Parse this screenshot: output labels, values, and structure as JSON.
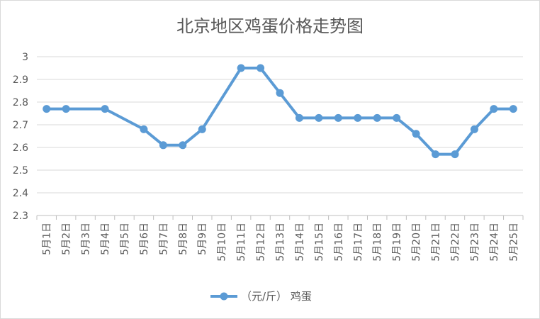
{
  "chart_data": {
    "type": "line",
    "title": "北京地区鸡蛋价格走势图",
    "categories": [
      "5月1日",
      "5月2日",
      "5月3日",
      "5月4日",
      "5月5日",
      "5月6日",
      "5月7日",
      "5月8日",
      "5月9日",
      "5月10日",
      "5月11日",
      "5月12日",
      "5月13日",
      "5月14日",
      "5月15日",
      "5月16日",
      "5月17日",
      "5月18日",
      "5月19日",
      "5月20日",
      "5月21日",
      "5月22日",
      "5月23日",
      "5月24日",
      "5月25日"
    ],
    "series": [
      {
        "name": "（元/斤） 鸡蛋",
        "color": "#5b9bd5",
        "x": [
          "5月1日",
          "5月2日",
          "5月4日",
          "5月6日",
          "5月7日",
          "5月8日",
          "5月9日",
          "5月11日",
          "5月12日",
          "5月13日",
          "5月14日",
          "5月15日",
          "5月16日",
          "5月17日",
          "5月18日",
          "5月19日",
          "5月20日",
          "5月21日",
          "5月22日",
          "5月23日",
          "5月24日",
          "5月25日"
        ],
        "values": [
          2.77,
          2.77,
          2.77,
          2.68,
          2.61,
          2.61,
          2.68,
          2.95,
          2.95,
          2.84,
          2.73,
          2.73,
          2.73,
          2.73,
          2.73,
          2.73,
          2.66,
          2.57,
          2.57,
          2.68,
          2.77,
          2.77
        ]
      }
    ],
    "ylim": [
      2.3,
      3.0
    ],
    "yticks": [
      "2.3",
      "2.4",
      "2.5",
      "2.6",
      "2.7",
      "2.8",
      "2.9",
      "3"
    ],
    "xlabel": "",
    "ylabel": "",
    "grid": true,
    "legend": "bottom"
  }
}
